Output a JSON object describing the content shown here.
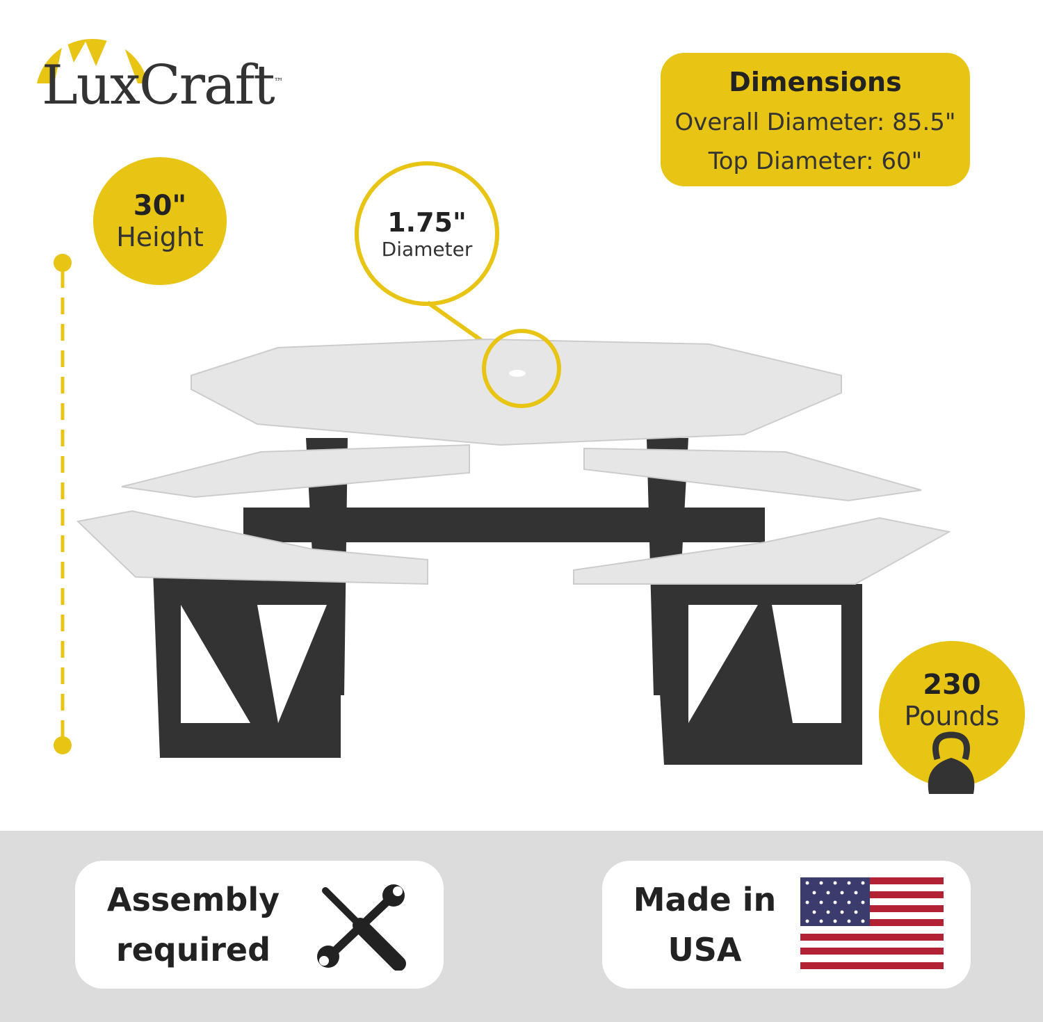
{
  "brand": {
    "name": "LuxCraft",
    "tm": "™"
  },
  "colors": {
    "accent": "#e8c414",
    "dark": "#2f2f2f",
    "band": "#dcdcdc"
  },
  "dimensions": {
    "title": "Dimensions",
    "overall": "Overall Diameter: 85.5\"",
    "top": "Top Diameter: 60\""
  },
  "height": {
    "value": "30\"",
    "label": "Height"
  },
  "umbrella_hole": {
    "value": "1.75\"",
    "label": "Diameter"
  },
  "weight": {
    "value": "230",
    "label": "Pounds",
    "icon": "kettlebell-icon"
  },
  "assembly": {
    "line1": "Assembly",
    "line2": "required",
    "icon": "tools-icon"
  },
  "origin": {
    "line1": "Made in",
    "line2": "USA",
    "icon": "us-flag-icon"
  }
}
